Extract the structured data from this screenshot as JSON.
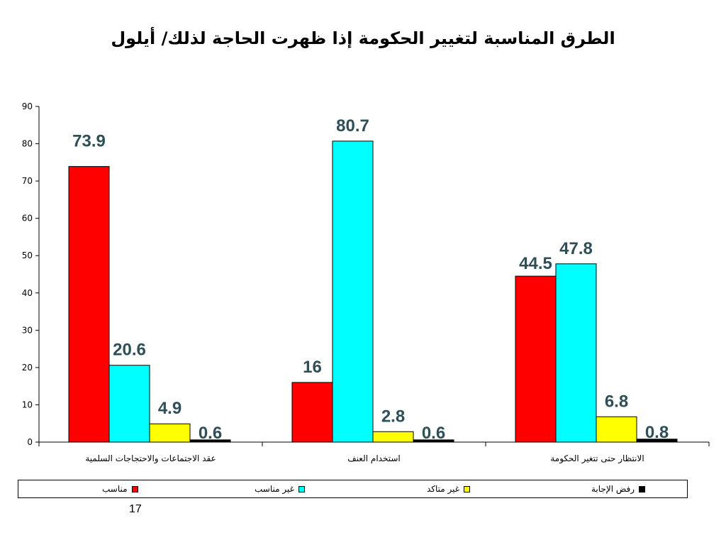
{
  "page_number": "17",
  "chart_data": {
    "type": "bar",
    "title": "الطرق المناسبة لتغيير الحكومة إذا ظهرت الحاجة لذلك/ أيلول",
    "categories": [
      "عقد الاجتماعات والاحتجاجات السلمية",
      "استخدام العنف",
      "الانتظار حتى تتغير الحكومة"
    ],
    "series": [
      {
        "name": "مناسب",
        "color": "#ff0000",
        "values": [
          73.9,
          16,
          44.5
        ]
      },
      {
        "name": "غير مناسب",
        "color": "#00ffff",
        "values": [
          20.6,
          80.7,
          47.8
        ]
      },
      {
        "name": "غير متاكد",
        "color": "#ffff00",
        "values": [
          4.9,
          2.8,
          6.8
        ]
      },
      {
        "name": "رفض الإجابة",
        "color": "#000000",
        "values": [
          0.6,
          0.6,
          0.8
        ]
      }
    ],
    "ylim": [
      0,
      90
    ],
    "yticks": [
      0,
      10,
      20,
      30,
      40,
      50,
      60,
      70,
      80,
      90
    ],
    "xlabel": "",
    "ylabel": "",
    "grid": false,
    "legend_position": "bottom",
    "data_label_color": "#2f4f57"
  }
}
